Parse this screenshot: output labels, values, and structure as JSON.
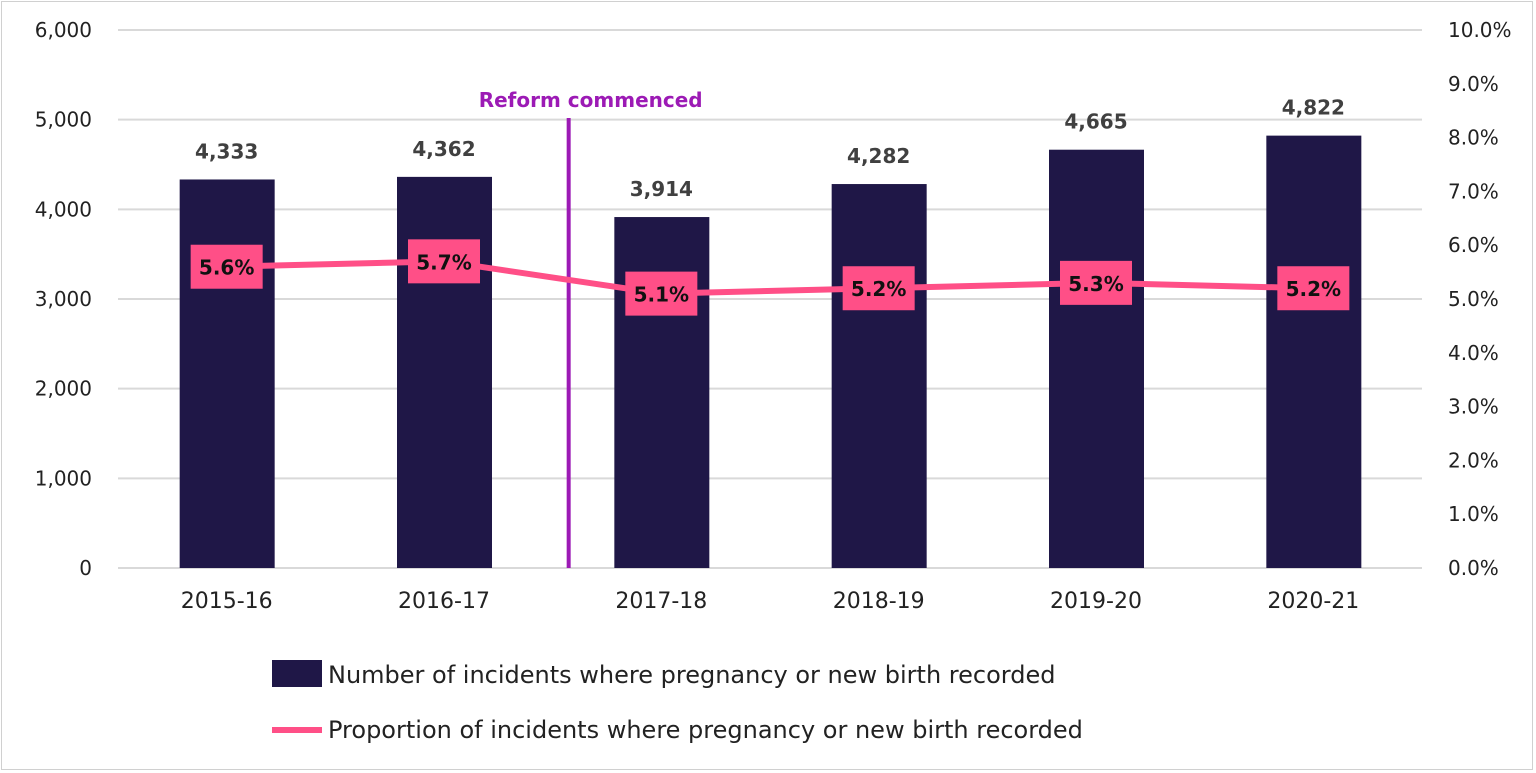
{
  "chart_data": {
    "type": "bar+line",
    "categories": [
      "2015-16",
      "2016-17",
      "2017-18",
      "2018-19",
      "2019-20",
      "2020-21"
    ],
    "series": [
      {
        "name": "Number of incidents where pregnancy or new birth recorded",
        "type": "bar",
        "axis": "left",
        "values": [
          4333,
          4362,
          3914,
          4282,
          4665,
          4822
        ],
        "labels": [
          "4,333",
          "4,362",
          "3,914",
          "4,282",
          "4,665",
          "4,822"
        ],
        "color": "#1f1747"
      },
      {
        "name": "Proportion of incidents where pregnancy or new birth recorded",
        "type": "line",
        "axis": "right",
        "values": [
          5.6,
          5.7,
          5.1,
          5.2,
          5.3,
          5.2
        ],
        "labels": [
          "5.6%",
          "5.7%",
          "5.1%",
          "5.2%",
          "5.3%",
          "5.2%"
        ],
        "color": "#ff4f87"
      }
    ],
    "left_axis": {
      "ylim": [
        0,
        6000
      ],
      "ticks": [
        "0",
        "1,000",
        "2,000",
        "3,000",
        "4,000",
        "5,000",
        "6,000"
      ]
    },
    "right_axis": {
      "ylim": [
        0,
        10
      ],
      "ticks": [
        "0.0%",
        "1.0%",
        "2.0%",
        "3.0%",
        "4.0%",
        "5.0%",
        "6.0%",
        "7.0%",
        "8.0%",
        "9.0%",
        "10.0%"
      ]
    },
    "annotation": {
      "text": "Reform commenced",
      "between": [
        "2016-17",
        "2017-18"
      ],
      "color": "#9c1ab5"
    },
    "grid": true,
    "legend_position": "bottom"
  }
}
